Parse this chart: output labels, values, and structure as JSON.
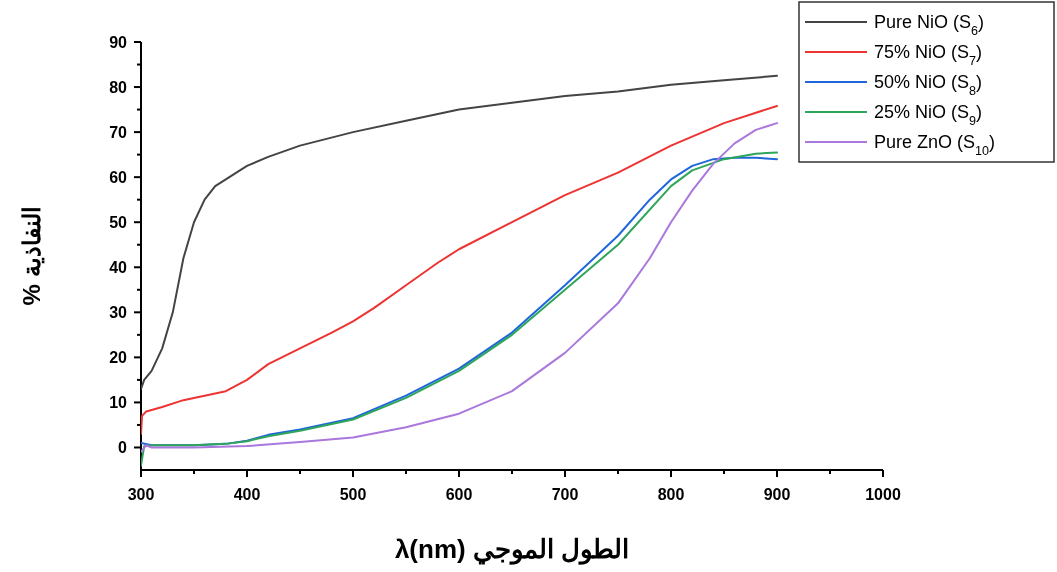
{
  "chart_data": {
    "type": "line",
    "xlabel": "λ(nm) الطول الموجي",
    "ylabel": "% النفاذية",
    "xlim": [
      300,
      1000
    ],
    "ylim": [
      -5,
      90
    ],
    "xticks": [
      300,
      {
        "value": 350,
        "label": null
      },
      400,
      {
        "value": 450,
        "label": null
      },
      500,
      {
        "value": 550,
        "label": null
      },
      600,
      {
        "value": 650,
        "label": null
      },
      700,
      {
        "value": 750,
        "label": null
      },
      800,
      {
        "value": 850,
        "label": null
      },
      900,
      {
        "value": 950,
        "label": null
      },
      1000
    ],
    "yticks": [
      0,
      {
        "value": 5,
        "label": null
      },
      10,
      {
        "value": 15,
        "label": null
      },
      20,
      {
        "value": 25,
        "label": null
      },
      30,
      {
        "value": 35,
        "label": null
      },
      40,
      {
        "value": 45,
        "label": null
      },
      50,
      {
        "value": 55,
        "label": null
      },
      60,
      {
        "value": 65,
        "label": null
      },
      70,
      {
        "value": 75,
        "label": null
      },
      80,
      {
        "value": 85,
        "label": null
      },
      90
    ],
    "legend": "top right",
    "grid": false,
    "series": [
      {
        "name": "Pure NiO (S$_{6}$)",
        "color": "#444444",
        "x": [
          300,
          303,
          310,
          320,
          330,
          340,
          350,
          360,
          370,
          380,
          390,
          400,
          420,
          450,
          500,
          550,
          600,
          650,
          700,
          750,
          800,
          850,
          900
        ],
        "values": [
          13,
          15,
          17,
          22,
          30,
          42,
          50,
          55,
          58,
          59.5,
          61,
          62.5,
          64.5,
          67,
          70,
          72.5,
          75,
          76.5,
          78,
          79,
          80.5,
          81.5,
          82.5
        ]
      },
      {
        "name": "75% NiO (S$_{7}$)",
        "color": "#ee3333",
        "x": [
          300,
          301,
          305,
          320,
          340,
          360,
          380,
          400,
          420,
          450,
          480,
          500,
          520,
          550,
          580,
          600,
          650,
          700,
          750,
          800,
          850,
          900
        ],
        "values": [
          3,
          7,
          8,
          9,
          10.5,
          11.5,
          12.5,
          15,
          18.5,
          22,
          25.5,
          28,
          31,
          36,
          41,
          44,
          50,
          56,
          61,
          67,
          72,
          75.8
        ]
      },
      {
        "name": "50% NiO (S$_{8}$)",
        "color": "#1f66dd",
        "x": [
          300,
          310,
          350,
          380,
          400,
          420,
          450,
          500,
          550,
          600,
          650,
          700,
          750,
          780,
          800,
          820,
          840,
          860,
          880,
          900
        ],
        "values": [
          1,
          0.5,
          0.5,
          0.8,
          1.5,
          2.8,
          4,
          6.5,
          11.5,
          17.5,
          25.5,
          36,
          47,
          55,
          59.5,
          62.5,
          64,
          64.3,
          64.3,
          64
        ]
      },
      {
        "name": "25% NiO (S$_{9}$)",
        "color": "#2ea55a",
        "x": [
          300,
          303,
          310,
          350,
          380,
          400,
          420,
          450,
          500,
          550,
          600,
          650,
          700,
          750,
          800,
          820,
          850,
          880,
          900
        ],
        "values": [
          -4,
          0.3,
          0.5,
          0.5,
          0.8,
          1.4,
          2.5,
          3.7,
          6.2,
          11,
          17,
          25,
          35,
          45,
          58,
          61.5,
          64,
          65.2,
          65.5
        ]
      },
      {
        "name": "Pure ZnO (S$_{10}$)",
        "color": "#aa77dd",
        "x": [
          300,
          305,
          310,
          350,
          400,
          450,
          500,
          550,
          600,
          650,
          700,
          750,
          780,
          800,
          820,
          840,
          860,
          880,
          900
        ],
        "values": [
          -1,
          0.5,
          0,
          0,
          0.3,
          1.2,
          2.2,
          4.5,
          7.5,
          12.5,
          21,
          32,
          42,
          50,
          57,
          63,
          67.5,
          70.5,
          72
        ]
      }
    ]
  }
}
